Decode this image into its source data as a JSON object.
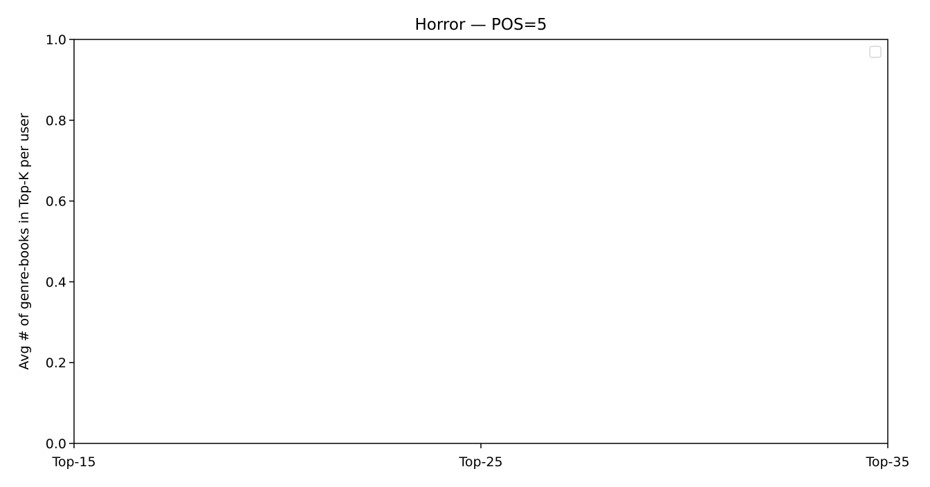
{
  "chart_data": {
    "type": "line",
    "title": "Horror — POS=5",
    "xlabel": "",
    "ylabel": "Avg # of genre-books in Top-K per user",
    "categories": [
      "Top-15",
      "Top-25",
      "Top-35"
    ],
    "series": [],
    "ylim": [
      0,
      1
    ],
    "yticks": [
      "0.0",
      "0.2",
      "0.4",
      "0.6",
      "0.8",
      "1.0"
    ],
    "grid": false,
    "legend": {
      "placement": "top-right",
      "entries": []
    }
  }
}
